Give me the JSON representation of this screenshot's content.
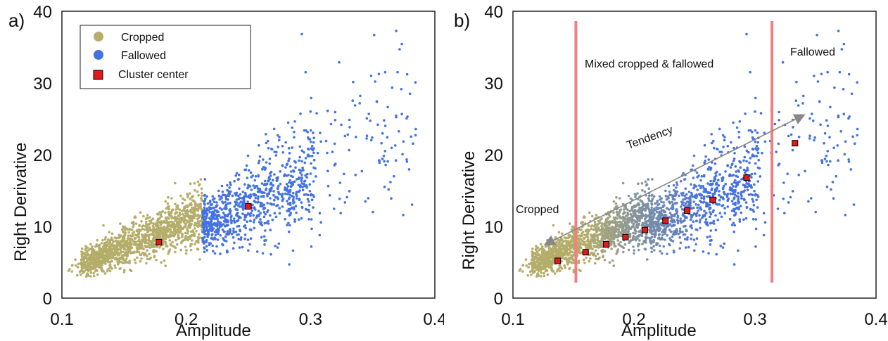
{
  "chart_data": [
    {
      "panel": "a)",
      "type": "scatter",
      "xlabel": "Amplitude",
      "ylabel": "Right Derivative",
      "xlim": [
        0.1,
        0.4
      ],
      "ylim": [
        0,
        40
      ],
      "xticks": [
        "0.1",
        "0.2",
        "0.3",
        "0.4"
      ],
      "yticks": [
        "0",
        "10",
        "20",
        "30",
        "40"
      ],
      "legend_position": "top-left",
      "grid": false,
      "colors": {
        "cropped": "#b5ad6a",
        "fallowed": "#4472e0",
        "center": "#e01b1b"
      },
      "legend": [
        {
          "label": "Cropped",
          "marker": "circle",
          "color": "#b5ad6a"
        },
        {
          "label": "Fallowed",
          "marker": "circle",
          "color": "#4472e0"
        },
        {
          "label": "Cluster center",
          "marker": "square",
          "color": "#e01b1b"
        }
      ],
      "series": [
        {
          "name": "Cropped",
          "color": "#b5ad6a",
          "x_range": [
            0.105,
            0.213
          ],
          "trend": "y ≈ 4 + 70·(x−0.105)"
        },
        {
          "name": "Fallowed",
          "color": "#4472e0",
          "x_range": [
            0.213,
            0.38
          ],
          "trend": "y ≈ 10 + 85·(x−0.213)"
        }
      ],
      "cluster_centers": [
        {
          "x": 0.178,
          "y": 7.8
        },
        {
          "x": 0.25,
          "y": 12.8
        }
      ]
    },
    {
      "panel": "b)",
      "type": "scatter",
      "xlabel": "Amplitude",
      "ylabel": "Right Derivative",
      "xlim": [
        0.1,
        0.4
      ],
      "ylim": [
        0,
        40
      ],
      "xticks": [
        "0.1",
        "0.2",
        "0.3",
        "0.4"
      ],
      "yticks": [
        "0",
        "10",
        "20",
        "30",
        "40"
      ],
      "grid": false,
      "colors": {
        "cropped": "#b5ad6a",
        "fallowed": "#4472e0",
        "center": "#e01b1b",
        "divider": "#f08080",
        "arrow": "#888888"
      },
      "annotations": {
        "cropped": "Cropped",
        "mixed": "Mixed cropped & fallowed",
        "fallowed": "Fallowed",
        "tendency": "Tendency"
      },
      "vertical_lines": [
        0.152,
        0.314
      ],
      "arrow": {
        "from": {
          "x": 0.127,
          "y": 7.5
        },
        "to": {
          "x": 0.34,
          "y": 25.5
        }
      },
      "cluster_centers": [
        {
          "x": 0.137,
          "y": 5.2
        },
        {
          "x": 0.16,
          "y": 6.4
        },
        {
          "x": 0.177,
          "y": 7.5
        },
        {
          "x": 0.193,
          "y": 8.5
        },
        {
          "x": 0.209,
          "y": 9.5
        },
        {
          "x": 0.226,
          "y": 10.8
        },
        {
          "x": 0.244,
          "y": 12.2
        },
        {
          "x": 0.265,
          "y": 13.7
        },
        {
          "x": 0.293,
          "y": 16.8
        },
        {
          "x": 0.333,
          "y": 21.6
        }
      ]
    }
  ]
}
